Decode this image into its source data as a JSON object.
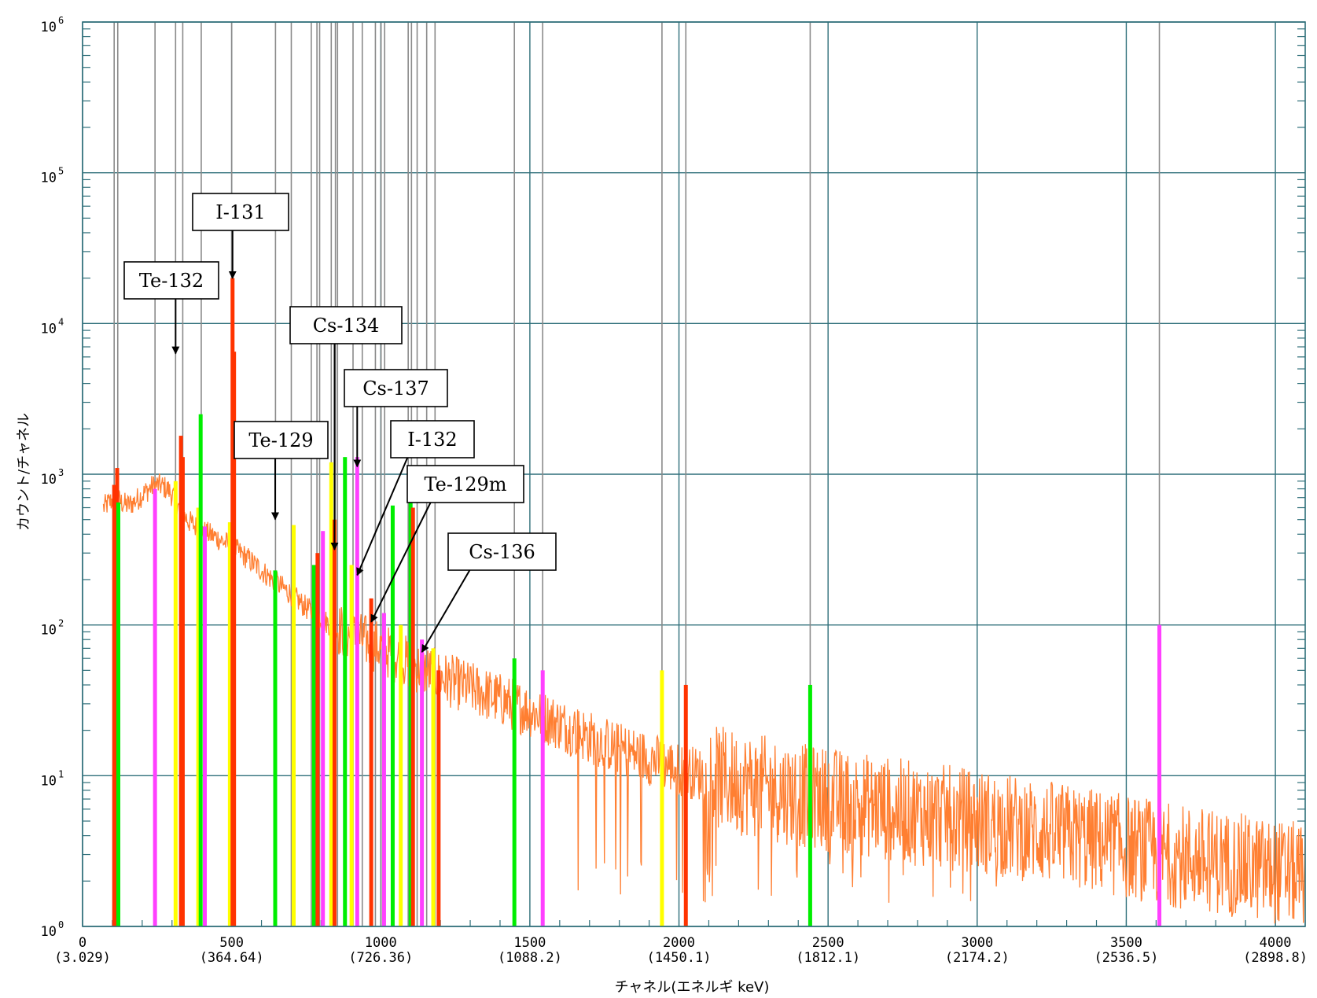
{
  "chart_data": {
    "type": "line",
    "xlabel": "チャネル(エネルギ keV)",
    "ylabel": "カウント/チャネル",
    "xlim": [
      0,
      4100
    ],
    "ylim_log10": [
      0,
      6
    ],
    "y_scale": "log",
    "grid": true,
    "x_ticks": [
      {
        "channel": 0,
        "label": "0",
        "energy": "(3.029)"
      },
      {
        "channel": 500,
        "label": "500",
        "energy": "(364.64)"
      },
      {
        "channel": 1000,
        "label": "1000",
        "energy": "(726.36)"
      },
      {
        "channel": 1500,
        "label": "1500",
        "energy": "(1088.2)"
      },
      {
        "channel": 2000,
        "label": "2000",
        "energy": "(1450.1)"
      },
      {
        "channel": 2500,
        "label": "2500",
        "energy": "(1812.1)"
      },
      {
        "channel": 3000,
        "label": "3000",
        "energy": "(2174.2)"
      },
      {
        "channel": 3500,
        "label": "3500",
        "energy": "(2536.5)"
      },
      {
        "channel": 4000,
        "label": "4000",
        "energy": "(2898.8)"
      }
    ],
    "y_ticks": [
      {
        "exp": 0,
        "base": "10",
        "sup": "0"
      },
      {
        "exp": 1,
        "base": "10",
        "sup": "1"
      },
      {
        "exp": 2,
        "base": "10",
        "sup": "2"
      },
      {
        "exp": 3,
        "base": "10",
        "sup": "3"
      },
      {
        "exp": 4,
        "base": "10",
        "sup": "4"
      },
      {
        "exp": 5,
        "base": "10",
        "sup": "5"
      },
      {
        "exp": 6,
        "base": "10",
        "sup": "6"
      }
    ],
    "spectrum_color": "#ff7f32",
    "spectrum_points": [
      [
        70,
        600
      ],
      [
        90,
        650
      ],
      [
        110,
        700
      ],
      [
        130,
        650
      ],
      [
        150,
        620
      ],
      [
        170,
        650
      ],
      [
        190,
        700
      ],
      [
        210,
        760
      ],
      [
        230,
        820
      ],
      [
        250,
        850
      ],
      [
        270,
        830
      ],
      [
        290,
        780
      ],
      [
        310,
        680
      ],
      [
        330,
        560
      ],
      [
        360,
        480
      ],
      [
        400,
        420
      ],
      [
        450,
        380
      ],
      [
        500,
        330
      ],
      [
        550,
        280
      ],
      [
        600,
        230
      ],
      [
        650,
        190
      ],
      [
        700,
        160
      ],
      [
        750,
        130
      ],
      [
        800,
        110
      ],
      [
        850,
        95
      ],
      [
        900,
        85
      ],
      [
        950,
        78
      ],
      [
        1000,
        70
      ],
      [
        1100,
        55
      ],
      [
        1200,
        45
      ],
      [
        1300,
        38
      ],
      [
        1400,
        32
      ],
      [
        1500,
        27
      ],
      [
        1600,
        22
      ],
      [
        1700,
        18
      ],
      [
        1800,
        15
      ],
      [
        1900,
        13
      ],
      [
        2000,
        11
      ],
      [
        2200,
        9
      ],
      [
        2400,
        7.5
      ],
      [
        2600,
        6.5
      ],
      [
        2800,
        5.6
      ],
      [
        3000,
        5
      ],
      [
        3200,
        4.3
      ],
      [
        3400,
        3.7
      ],
      [
        3600,
        3.1
      ],
      [
        3800,
        2.7
      ],
      [
        4000,
        2.3
      ],
      [
        4100,
        2.2
      ]
    ],
    "gray_lines": [
      106,
      118,
      243,
      312,
      336,
      398,
      500,
      647,
      700,
      767,
      786,
      795,
      834,
      848,
      855,
      907,
      938,
      982,
      1001,
      1013,
      1092,
      1103,
      1122,
      1154,
      1182,
      1448,
      1543,
      1943,
      2023,
      2440,
      3611
    ],
    "peaks": [
      {
        "channel": 106,
        "counts": 850,
        "color": "#ff3300"
      },
      {
        "channel": 116,
        "counts": 1100,
        "color": "#ff3300"
      },
      {
        "channel": 120,
        "counts": 650,
        "color": "#00ee00"
      },
      {
        "channel": 243,
        "counts": 800,
        "color": "#ff40ff"
      },
      {
        "channel": 312,
        "counts": 900,
        "color": "#ffff00"
      },
      {
        "channel": 330,
        "counts": 1800,
        "color": "#ff3300"
      },
      {
        "channel": 336,
        "counts": 1300,
        "color": "#ff3300"
      },
      {
        "channel": 388,
        "counts": 600,
        "color": "#ffff00"
      },
      {
        "channel": 396,
        "counts": 2500,
        "color": "#00ee00"
      },
      {
        "channel": 410,
        "counts": 450,
        "color": "#ff40ff"
      },
      {
        "channel": 494,
        "counts": 480,
        "color": "#ffff00"
      },
      {
        "channel": 503,
        "counts": 20000,
        "color": "#ff3300"
      },
      {
        "channel": 508,
        "counts": 6500,
        "color": "#ff3300"
      },
      {
        "channel": 646,
        "counts": 230,
        "color": "#00ee00"
      },
      {
        "channel": 708,
        "counts": 460,
        "color": "#ffff00"
      },
      {
        "channel": 776,
        "counts": 250,
        "color": "#00ee00"
      },
      {
        "channel": 788,
        "counts": 300,
        "color": "#ff3300"
      },
      {
        "channel": 806,
        "counts": 420,
        "color": "#ff40ff"
      },
      {
        "channel": 834,
        "counts": 1200,
        "color": "#ffff00"
      },
      {
        "channel": 845,
        "counts": 500,
        "color": "#ff3300"
      },
      {
        "channel": 880,
        "counts": 1300,
        "color": "#00ee00"
      },
      {
        "channel": 902,
        "counts": 250,
        "color": "#ffff00"
      },
      {
        "channel": 921,
        "counts": 1300,
        "color": "#ff40ff"
      },
      {
        "channel": 968,
        "counts": 150,
        "color": "#ff3300"
      },
      {
        "channel": 1011,
        "counts": 120,
        "color": "#ff40ff"
      },
      {
        "channel": 1040,
        "counts": 620,
        "color": "#00ee00"
      },
      {
        "channel": 1067,
        "counts": 100,
        "color": "#ffff00"
      },
      {
        "channel": 1100,
        "counts": 900,
        "color": "#00ee00"
      },
      {
        "channel": 1108,
        "counts": 600,
        "color": "#ff3300"
      },
      {
        "channel": 1138,
        "counts": 80,
        "color": "#ff40ff"
      },
      {
        "channel": 1176,
        "counts": 70,
        "color": "#ffff00"
      },
      {
        "channel": 1194,
        "counts": 50,
        "color": "#ff3300"
      },
      {
        "channel": 1448,
        "counts": 60,
        "color": "#00ee00"
      },
      {
        "channel": 1543,
        "counts": 50,
        "color": "#ff40ff"
      },
      {
        "channel": 1943,
        "counts": 50,
        "color": "#ffff00"
      },
      {
        "channel": 2023,
        "counts": 40,
        "color": "#ff3300"
      },
      {
        "channel": 2440,
        "counts": 40,
        "color": "#00ee00"
      },
      {
        "channel": 3611,
        "counts": 100,
        "color": "#ff40ff"
      }
    ],
    "annotations": [
      {
        "text": "I-131",
        "target_channel": 503,
        "target_log10": 4.3
      },
      {
        "text": "Te-132",
        "target_channel": 312,
        "target_log10": 3.8
      },
      {
        "text": "Cs-134",
        "target_channel": 845,
        "target_log10": 2.5
      },
      {
        "text": "Cs-137",
        "target_channel": 921,
        "target_log10": 3.05
      },
      {
        "text": "Te-129",
        "target_channel": 646,
        "target_log10": 2.7
      },
      {
        "text": "I-132",
        "target_channel": 921,
        "target_log10": 2.33
      },
      {
        "text": "Te-129m",
        "target_channel": 968,
        "target_log10": 2.02
      },
      {
        "text": "Cs-136",
        "target_channel": 1138,
        "target_log10": 1.82
      }
    ]
  }
}
